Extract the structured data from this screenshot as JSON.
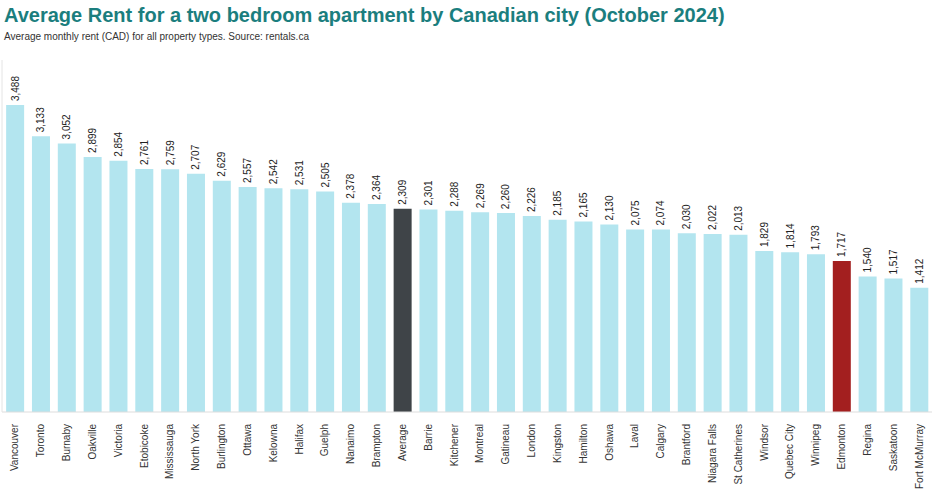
{
  "chart_data": {
    "type": "bar",
    "title": "Average Rent for a two bedroom apartment by Canadian city (October 2024)",
    "subtitle": "Average monthly rent (CAD) for all property types. Source: rentals.ca",
    "categories": [
      "Vancouver",
      "Toronto",
      "Burnaby",
      "Oakville",
      "Victoria",
      "Etobicoke",
      "Mississauga",
      "North York",
      "Burlington",
      "Ottawa",
      "Kelowna",
      "Halifax",
      "Guelph",
      "Nanaimo",
      "Brampton",
      "Average",
      "Barrie",
      "Kitchener",
      "Montreal",
      "Gatineau",
      "London",
      "Kingston",
      "Hamilton",
      "Oshawa",
      "Laval",
      "Calgary",
      "Brantford",
      "Niagara Falls",
      "St Catherines",
      "Windsor",
      "Quebec City",
      "Winnipeg",
      "Edmonton",
      "Regina",
      "Saskatoon",
      "Fort McMurray"
    ],
    "values": [
      3488,
      3133,
      3052,
      2899,
      2854,
      2761,
      2759,
      2707,
      2629,
      2557,
      2542,
      2531,
      2505,
      2378,
      2364,
      2309,
      2301,
      2288,
      2269,
      2260,
      2226,
      2185,
      2165,
      2130,
      2075,
      2074,
      2030,
      2022,
      2013,
      1829,
      1814,
      1793,
      1717,
      1540,
      1517,
      1412
    ],
    "value_labels": [
      "3,488",
      "3,133",
      "3,052",
      "2,899",
      "2,854",
      "2,761",
      "2,759",
      "2,707",
      "2,629",
      "2,557",
      "2,542",
      "2,531",
      "2,505",
      "2,378",
      "2,364",
      "2,309",
      "2,301",
      "2,288",
      "2,269",
      "2,260",
      "2,226",
      "2,185",
      "2,165",
      "2,130",
      "2,075",
      "2,074",
      "2,030",
      "2,022",
      "2,013",
      "1,829",
      "1,814",
      "1,793",
      "1,717",
      "1,540",
      "1,517",
      "1,412"
    ],
    "colors": [
      "#b3e5ef",
      "#b3e5ef",
      "#b3e5ef",
      "#b3e5ef",
      "#b3e5ef",
      "#b3e5ef",
      "#b3e5ef",
      "#b3e5ef",
      "#b3e5ef",
      "#b3e5ef",
      "#b3e5ef",
      "#b3e5ef",
      "#b3e5ef",
      "#b3e5ef",
      "#b3e5ef",
      "#3f4448",
      "#b3e5ef",
      "#b3e5ef",
      "#b3e5ef",
      "#b3e5ef",
      "#b3e5ef",
      "#b3e5ef",
      "#b3e5ef",
      "#b3e5ef",
      "#b3e5ef",
      "#b3e5ef",
      "#b3e5ef",
      "#b3e5ef",
      "#b3e5ef",
      "#b3e5ef",
      "#b3e5ef",
      "#b3e5ef",
      "#a31f1f",
      "#b3e5ef",
      "#b3e5ef",
      "#b3e5ef"
    ],
    "ylim": [
      0,
      4000
    ],
    "yticks": [
      0,
      1000,
      2000,
      3000,
      4000
    ],
    "tick_labels": "x",
    "data_labels": true,
    "grid": false
  }
}
